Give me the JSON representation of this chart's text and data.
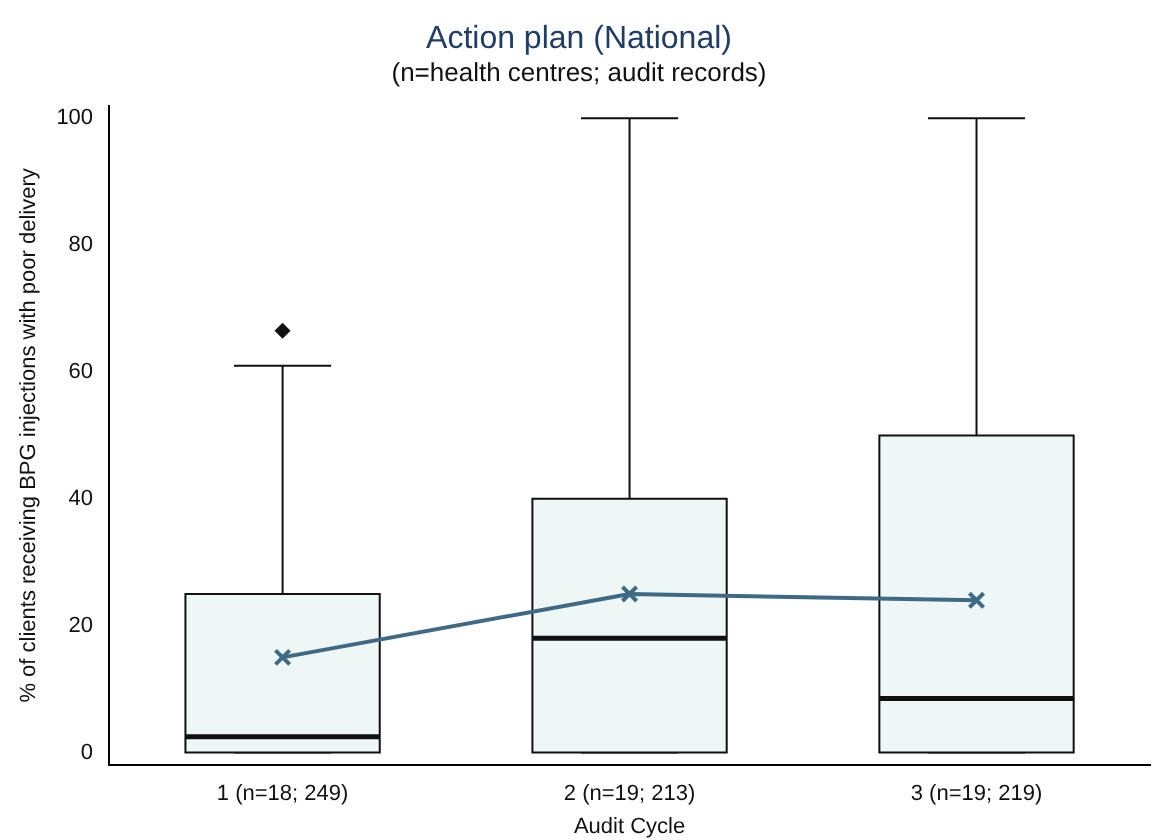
{
  "chart_data": {
    "type": "box",
    "title": "Action plan (National)",
    "subtitle": "(n=health centres; audit records)",
    "xlabel": "Audit Cycle",
    "ylabel": "% of clients receiving BPG injections with poor delivery",
    "categories": [
      "1 (n=18; 249)",
      "2 (n=19; 213)",
      "3 (n=19; 219)"
    ],
    "ylim": [
      -2,
      102
    ],
    "yticks": [
      0,
      20,
      40,
      60,
      80,
      100
    ],
    "grid": false,
    "legend": false,
    "series": [
      {
        "color": "#eef6f6",
        "boxes": [
          {
            "low": 0,
            "q1": 0,
            "median": 2.5,
            "q3": 25,
            "high": 61,
            "outliers": [
              66.5
            ]
          },
          {
            "low": 0,
            "q1": 0,
            "median": 18,
            "q3": 40,
            "high": 100
          },
          {
            "low": 0,
            "q1": 0,
            "median": 8.5,
            "q3": 50,
            "high": 100
          }
        ]
      },
      {
        "type": "line",
        "color": "#3f6a86",
        "marker": "cross",
        "values": [
          15,
          25,
          24
        ]
      }
    ]
  }
}
